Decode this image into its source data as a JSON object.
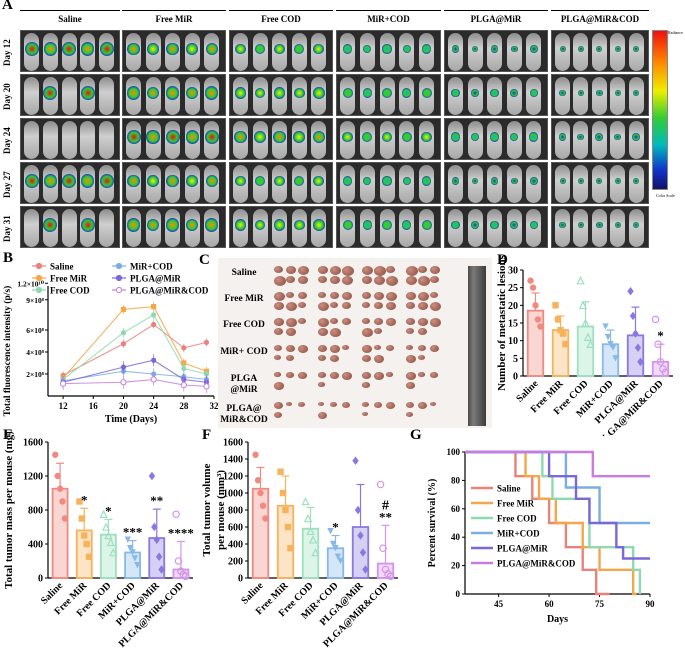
{
  "panel_a": {
    "label": "A",
    "groups": [
      "Saline",
      "Free MiR",
      "Free COD",
      "MiR+COD",
      "PLGA@MiR",
      "PLGA@MiR&COD"
    ],
    "days": [
      "Day 12",
      "Day 20",
      "Day 24",
      "Day 27",
      "Day 31"
    ],
    "colorbar_top": "Radiance",
    "colorbar_bottom": "Color Scale"
  },
  "chart_data": [
    {
      "panel": "B",
      "type": "line",
      "xlabel": "Time (Days)",
      "ylabel": "Total fluorescence intensity (p/s)",
      "x": [
        12,
        20,
        24,
        28,
        31
      ],
      "xticks": [
        "12",
        "16",
        "20",
        "24",
        "28",
        "32"
      ],
      "yticks": [
        "2×10⁸",
        "4×10⁸",
        "6×10⁸",
        "9×10⁸",
        "1.2×10¹⁰"
      ],
      "series": [
        {
          "name": "Saline",
          "color": "#e8837a",
          "values": [
            1.5,
            3.8,
            5.2,
            3.5,
            3.9
          ]
        },
        {
          "name": "Free MiR",
          "color": "#f2a74a",
          "values": [
            1.3,
            6.3,
            6.5,
            2.4,
            1.8
          ]
        },
        {
          "name": "Free COD",
          "color": "#8fd9b0",
          "values": [
            1.2,
            4.6,
            5.9,
            2.0,
            1.6
          ]
        },
        {
          "name": "MiR+COD",
          "color": "#7aaee0",
          "values": [
            1.1,
            1.8,
            1.6,
            1.4,
            1.2
          ]
        },
        {
          "name": "PLGA@MiR",
          "color": "#7b68d8",
          "values": [
            1.0,
            2.1,
            2.6,
            1.2,
            1.0
          ]
        },
        {
          "name": "PLGA@MiR&COD",
          "color": "#c77de0",
          "values": [
            0.9,
            1.0,
            1.2,
            0.8,
            0.7
          ]
        }
      ]
    },
    {
      "panel": "D",
      "type": "bar",
      "ylabel": "Number of metastatic lesions",
      "categories": [
        "Saline",
        "Free MiR",
        "Free COD",
        "MiR+COD",
        "PLGA@MiR",
        "PLGA@MiR&COD"
      ],
      "values": [
        18.5,
        13,
        14,
        9,
        11.5,
        4
      ],
      "errors": [
        5,
        4,
        7,
        4,
        8,
        5
      ],
      "ylim": [
        0,
        30
      ],
      "yticks": [
        "0",
        "5",
        "10",
        "15",
        "20",
        "25",
        "30"
      ],
      "significance": [
        "",
        "",
        "",
        "",
        "",
        "*"
      ],
      "points": [
        [
          27,
          25,
          20,
          16,
          14
        ],
        [
          20,
          16,
          13,
          12,
          9
        ],
        [
          27,
          20,
          15,
          11,
          9
        ],
        [
          14,
          11,
          9,
          8,
          5
        ],
        [
          24,
          17,
          12,
          8,
          4
        ],
        [
          16,
          9,
          4,
          2,
          1
        ]
      ]
    },
    {
      "panel": "E",
      "type": "bar",
      "ylabel": "Total tumor mass per mouse (mg)",
      "categories": [
        "Saline",
        "Free MiR",
        "Free COD",
        "MiR+COD",
        "PLGA@MiR",
        "PLGA@MiR&COD"
      ],
      "values": [
        1050,
        560,
        510,
        300,
        470,
        100
      ],
      "errors": [
        300,
        260,
        180,
        140,
        340,
        330
      ],
      "ylim": [
        0,
        1600
      ],
      "yticks": [
        "0",
        "400",
        "800",
        "1200",
        "1600"
      ],
      "significance": [
        "",
        "*",
        "*",
        "***",
        "**",
        "****"
      ],
      "points": [
        [
          1450,
          1200,
          1050,
          900,
          700
        ],
        [
          900,
          700,
          500,
          400,
          250
        ],
        [
          750,
          600,
          500,
          420,
          300
        ],
        [
          450,
          350,
          300,
          230,
          150
        ],
        [
          1200,
          600,
          450,
          250,
          100
        ],
        [
          750,
          200,
          80,
          40,
          20
        ]
      ]
    },
    {
      "panel": "F",
      "type": "bar",
      "ylabel": "Total tumor volume per mouse (mm³)",
      "categories": [
        "Saline",
        "Free MiR",
        "Free COD",
        "MiR+COD",
        "PLGA@MiR",
        "PLGA@MiR&COD"
      ],
      "values": [
        1050,
        850,
        580,
        350,
        600,
        170
      ],
      "errors": [
        250,
        350,
        250,
        150,
        500,
        450
      ],
      "ylim": [
        0,
        1600
      ],
      "yticks": [
        "0",
        "200",
        "400",
        "600",
        "800",
        "1000",
        "1200",
        "1400",
        "1600"
      ],
      "significance": [
        "",
        "",
        "",
        "*",
        "",
        "**"
      ],
      "hash": "#",
      "points": [
        [
          1450,
          1150,
          1000,
          850,
          700
        ],
        [
          1250,
          1000,
          800,
          600,
          350
        ],
        [
          900,
          700,
          550,
          450,
          300
        ],
        [
          550,
          400,
          350,
          250,
          200
        ],
        [
          1380,
          800,
          500,
          300,
          100
        ],
        [
          1100,
          350,
          100,
          50,
          20
        ]
      ]
    },
    {
      "panel": "G",
      "type": "line",
      "xlabel": "Days",
      "ylabel": "Percent survival (%)",
      "xlim": [
        35,
        90
      ],
      "ylim": [
        0,
        100
      ],
      "xticks": [
        "45",
        "60",
        "75",
        "90"
      ],
      "yticks": [
        "0",
        "20",
        "40",
        "60",
        "80",
        "100"
      ],
      "series": [
        {
          "name": "Saline",
          "color": "#e8837a",
          "steps": [
            [
              35,
              100
            ],
            [
              50,
              100
            ],
            [
              50,
              83
            ],
            [
              55,
              83
            ],
            [
              55,
              67
            ],
            [
              60,
              67
            ],
            [
              60,
              50
            ],
            [
              65,
              50
            ],
            [
              65,
              33
            ],
            [
              70,
              33
            ],
            [
              70,
              17
            ],
            [
              74,
              17
            ],
            [
              74,
              0
            ],
            [
              78,
              0
            ]
          ]
        },
        {
          "name": "Free MiR",
          "color": "#f2a74a",
          "steps": [
            [
              35,
              100
            ],
            [
              53,
              100
            ],
            [
              53,
              83
            ],
            [
              57,
              83
            ],
            [
              57,
              67
            ],
            [
              62,
              67
            ],
            [
              62,
              50
            ],
            [
              70,
              50
            ],
            [
              70,
              33
            ],
            [
              75,
              33
            ],
            [
              75,
              17
            ],
            [
              85,
              17
            ],
            [
              85,
              0
            ],
            [
              86,
              0
            ]
          ]
        },
        {
          "name": "Free COD",
          "color": "#8fd9b0",
          "steps": [
            [
              35,
              100
            ],
            [
              58,
              100
            ],
            [
              58,
              83
            ],
            [
              61,
              83
            ],
            [
              61,
              67
            ],
            [
              72,
              67
            ],
            [
              72,
              33
            ],
            [
              85,
              33
            ],
            [
              85,
              17
            ],
            [
              87,
              17
            ],
            [
              87,
              0
            ]
          ]
        },
        {
          "name": "MiR+COD",
          "color": "#7aaee0",
          "steps": [
            [
              35,
              100
            ],
            [
              65,
              100
            ],
            [
              65,
              75
            ],
            [
              75,
              75
            ],
            [
              75,
              50
            ],
            [
              90,
              50
            ]
          ]
        },
        {
          "name": "PLGA@MiR",
          "color": "#7b68d8",
          "steps": [
            [
              35,
              100
            ],
            [
              60,
              100
            ],
            [
              60,
              83
            ],
            [
              68,
              83
            ],
            [
              68,
              67
            ],
            [
              72,
              67
            ],
            [
              72,
              50
            ],
            [
              80,
              50
            ],
            [
              80,
              33
            ],
            [
              82,
              33
            ],
            [
              82,
              25
            ],
            [
              90,
              25
            ]
          ]
        },
        {
          "name": "PLGA@MiR&COD",
          "color": "#c77de0",
          "steps": [
            [
              35,
              100
            ],
            [
              73,
              100
            ],
            [
              73,
              83
            ],
            [
              90,
              83
            ]
          ]
        }
      ]
    }
  ],
  "panel_c": {
    "label": "C",
    "rows": [
      "Saline",
      "Free MiR",
      "Free COD",
      "MiR+ COD",
      "PLGA @MiR",
      "PLGA@ MiR&COD"
    ]
  }
}
